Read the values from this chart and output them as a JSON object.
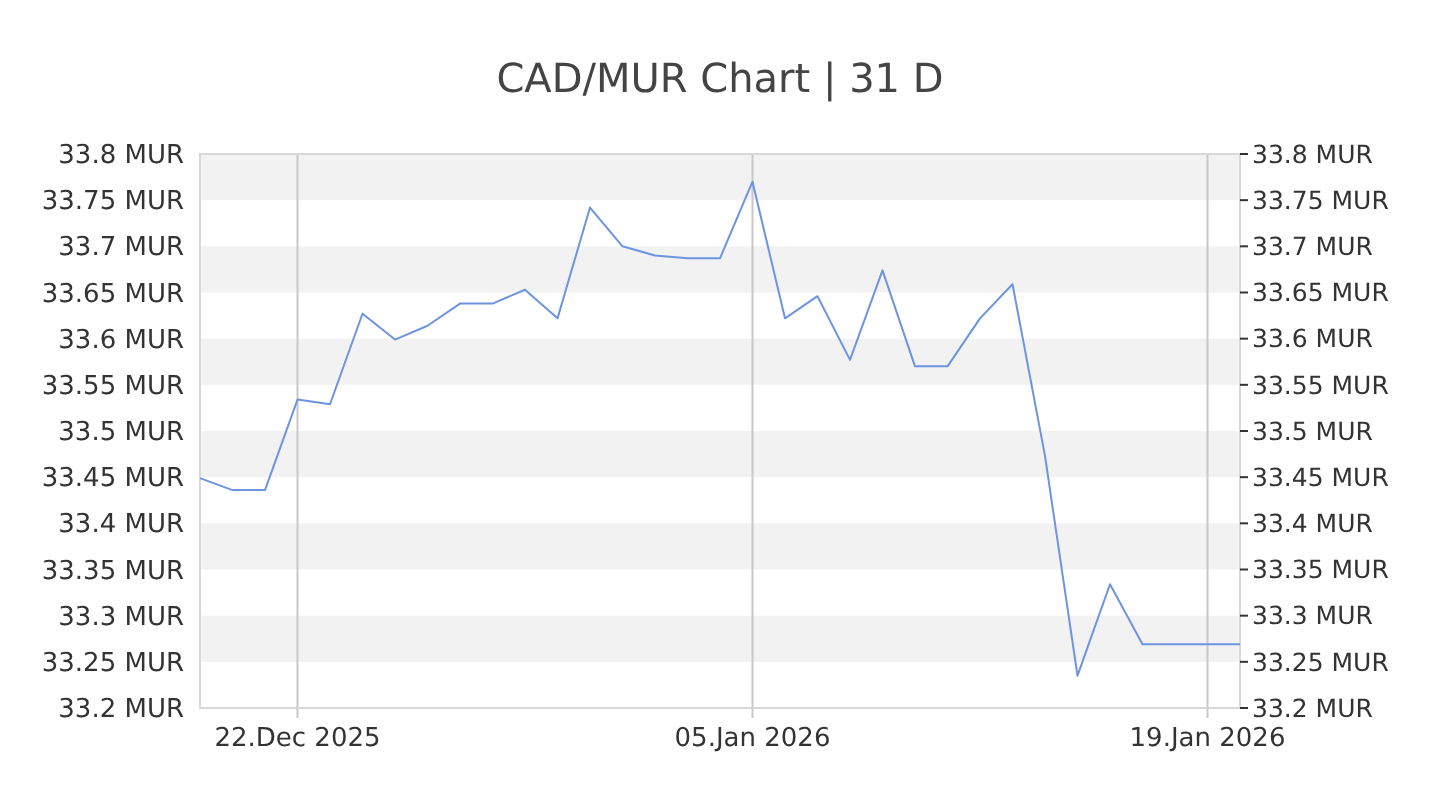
{
  "chart_data": {
    "type": "line",
    "title": "CAD/MUR Chart | 31 D",
    "x": [
      "2025-12-19",
      "2025-12-20",
      "2025-12-21",
      "2025-12-22",
      "2025-12-23",
      "2025-12-24",
      "2025-12-25",
      "2025-12-26",
      "2025-12-27",
      "2025-12-28",
      "2025-12-29",
      "2025-12-30",
      "2025-12-31",
      "2026-01-01",
      "2026-01-02",
      "2026-01-03",
      "2026-01-04",
      "2026-01-05",
      "2026-01-06",
      "2026-01-07",
      "2026-01-08",
      "2026-01-09",
      "2026-01-10",
      "2026-01-11",
      "2026-01-12",
      "2026-01-13",
      "2026-01-14",
      "2026-01-15",
      "2026-01-16",
      "2026-01-17",
      "2026-01-18",
      "2026-01-19",
      "2026-01-20"
    ],
    "series": [
      {
        "color": "#6d94e0",
        "values": [
          33.449,
          33.436,
          33.436,
          33.534,
          33.529,
          33.627,
          33.599,
          33.614,
          33.638,
          33.638,
          33.653,
          33.622,
          33.742,
          33.7,
          33.69,
          33.687,
          33.687,
          33.77,
          33.622,
          33.646,
          33.577,
          33.674,
          33.57,
          33.57,
          33.622,
          33.659,
          33.473,
          33.235,
          33.334,
          33.269,
          33.269,
          33.269,
          33.269
        ]
      }
    ],
    "xlim": [
      "2025-12-19",
      "2026-01-20"
    ],
    "xticks": [
      {
        "value": "2025-12-22",
        "label": "22.Dec 2025"
      },
      {
        "value": "2026-01-05",
        "label": "05.Jan 2026"
      },
      {
        "value": "2026-01-19",
        "label": "19.Jan 2026"
      }
    ],
    "ylim": [
      33.2,
      33.8
    ],
    "yticks": [
      {
        "value": 33.2,
        "label": "33.2 MUR"
      },
      {
        "value": 33.25,
        "label": "33.25 MUR"
      },
      {
        "value": 33.3,
        "label": "33.3 MUR"
      },
      {
        "value": 33.35,
        "label": "33.35 MUR"
      },
      {
        "value": 33.4,
        "label": "33.4 MUR"
      },
      {
        "value": 33.45,
        "label": "33.45 MUR"
      },
      {
        "value": 33.5,
        "label": "33.5 MUR"
      },
      {
        "value": 33.55,
        "label": "33.55 MUR"
      },
      {
        "value": 33.6,
        "label": "33.6 MUR"
      },
      {
        "value": 33.65,
        "label": "33.65 MUR"
      },
      {
        "value": 33.7,
        "label": "33.7 MUR"
      },
      {
        "value": 33.75,
        "label": "33.75 MUR"
      },
      {
        "value": 33.8,
        "label": "33.8 MUR"
      }
    ],
    "y2lim": [
      33.2,
      33.8
    ],
    "y2ticks": [
      {
        "value": 33.2,
        "label": "33.2 MUR"
      },
      {
        "value": 33.25,
        "label": "33.25 MUR"
      },
      {
        "value": 33.3,
        "label": "33.3 MUR"
      },
      {
        "value": 33.35,
        "label": "33.35 MUR"
      },
      {
        "value": 33.4,
        "label": "33.4 MUR"
      },
      {
        "value": 33.45,
        "label": "33.45 MUR"
      },
      {
        "value": 33.5,
        "label": "33.5 MUR"
      },
      {
        "value": 33.55,
        "label": "33.55 MUR"
      },
      {
        "value": 33.6,
        "label": "33.6 MUR"
      },
      {
        "value": 33.65,
        "label": "33.65 MUR"
      },
      {
        "value": 33.7,
        "label": "33.7 MUR"
      },
      {
        "value": 33.75,
        "label": "33.75 MUR"
      },
      {
        "value": 33.8,
        "label": "33.8 MUR"
      }
    ],
    "grid": true,
    "line_style": "solid"
  }
}
